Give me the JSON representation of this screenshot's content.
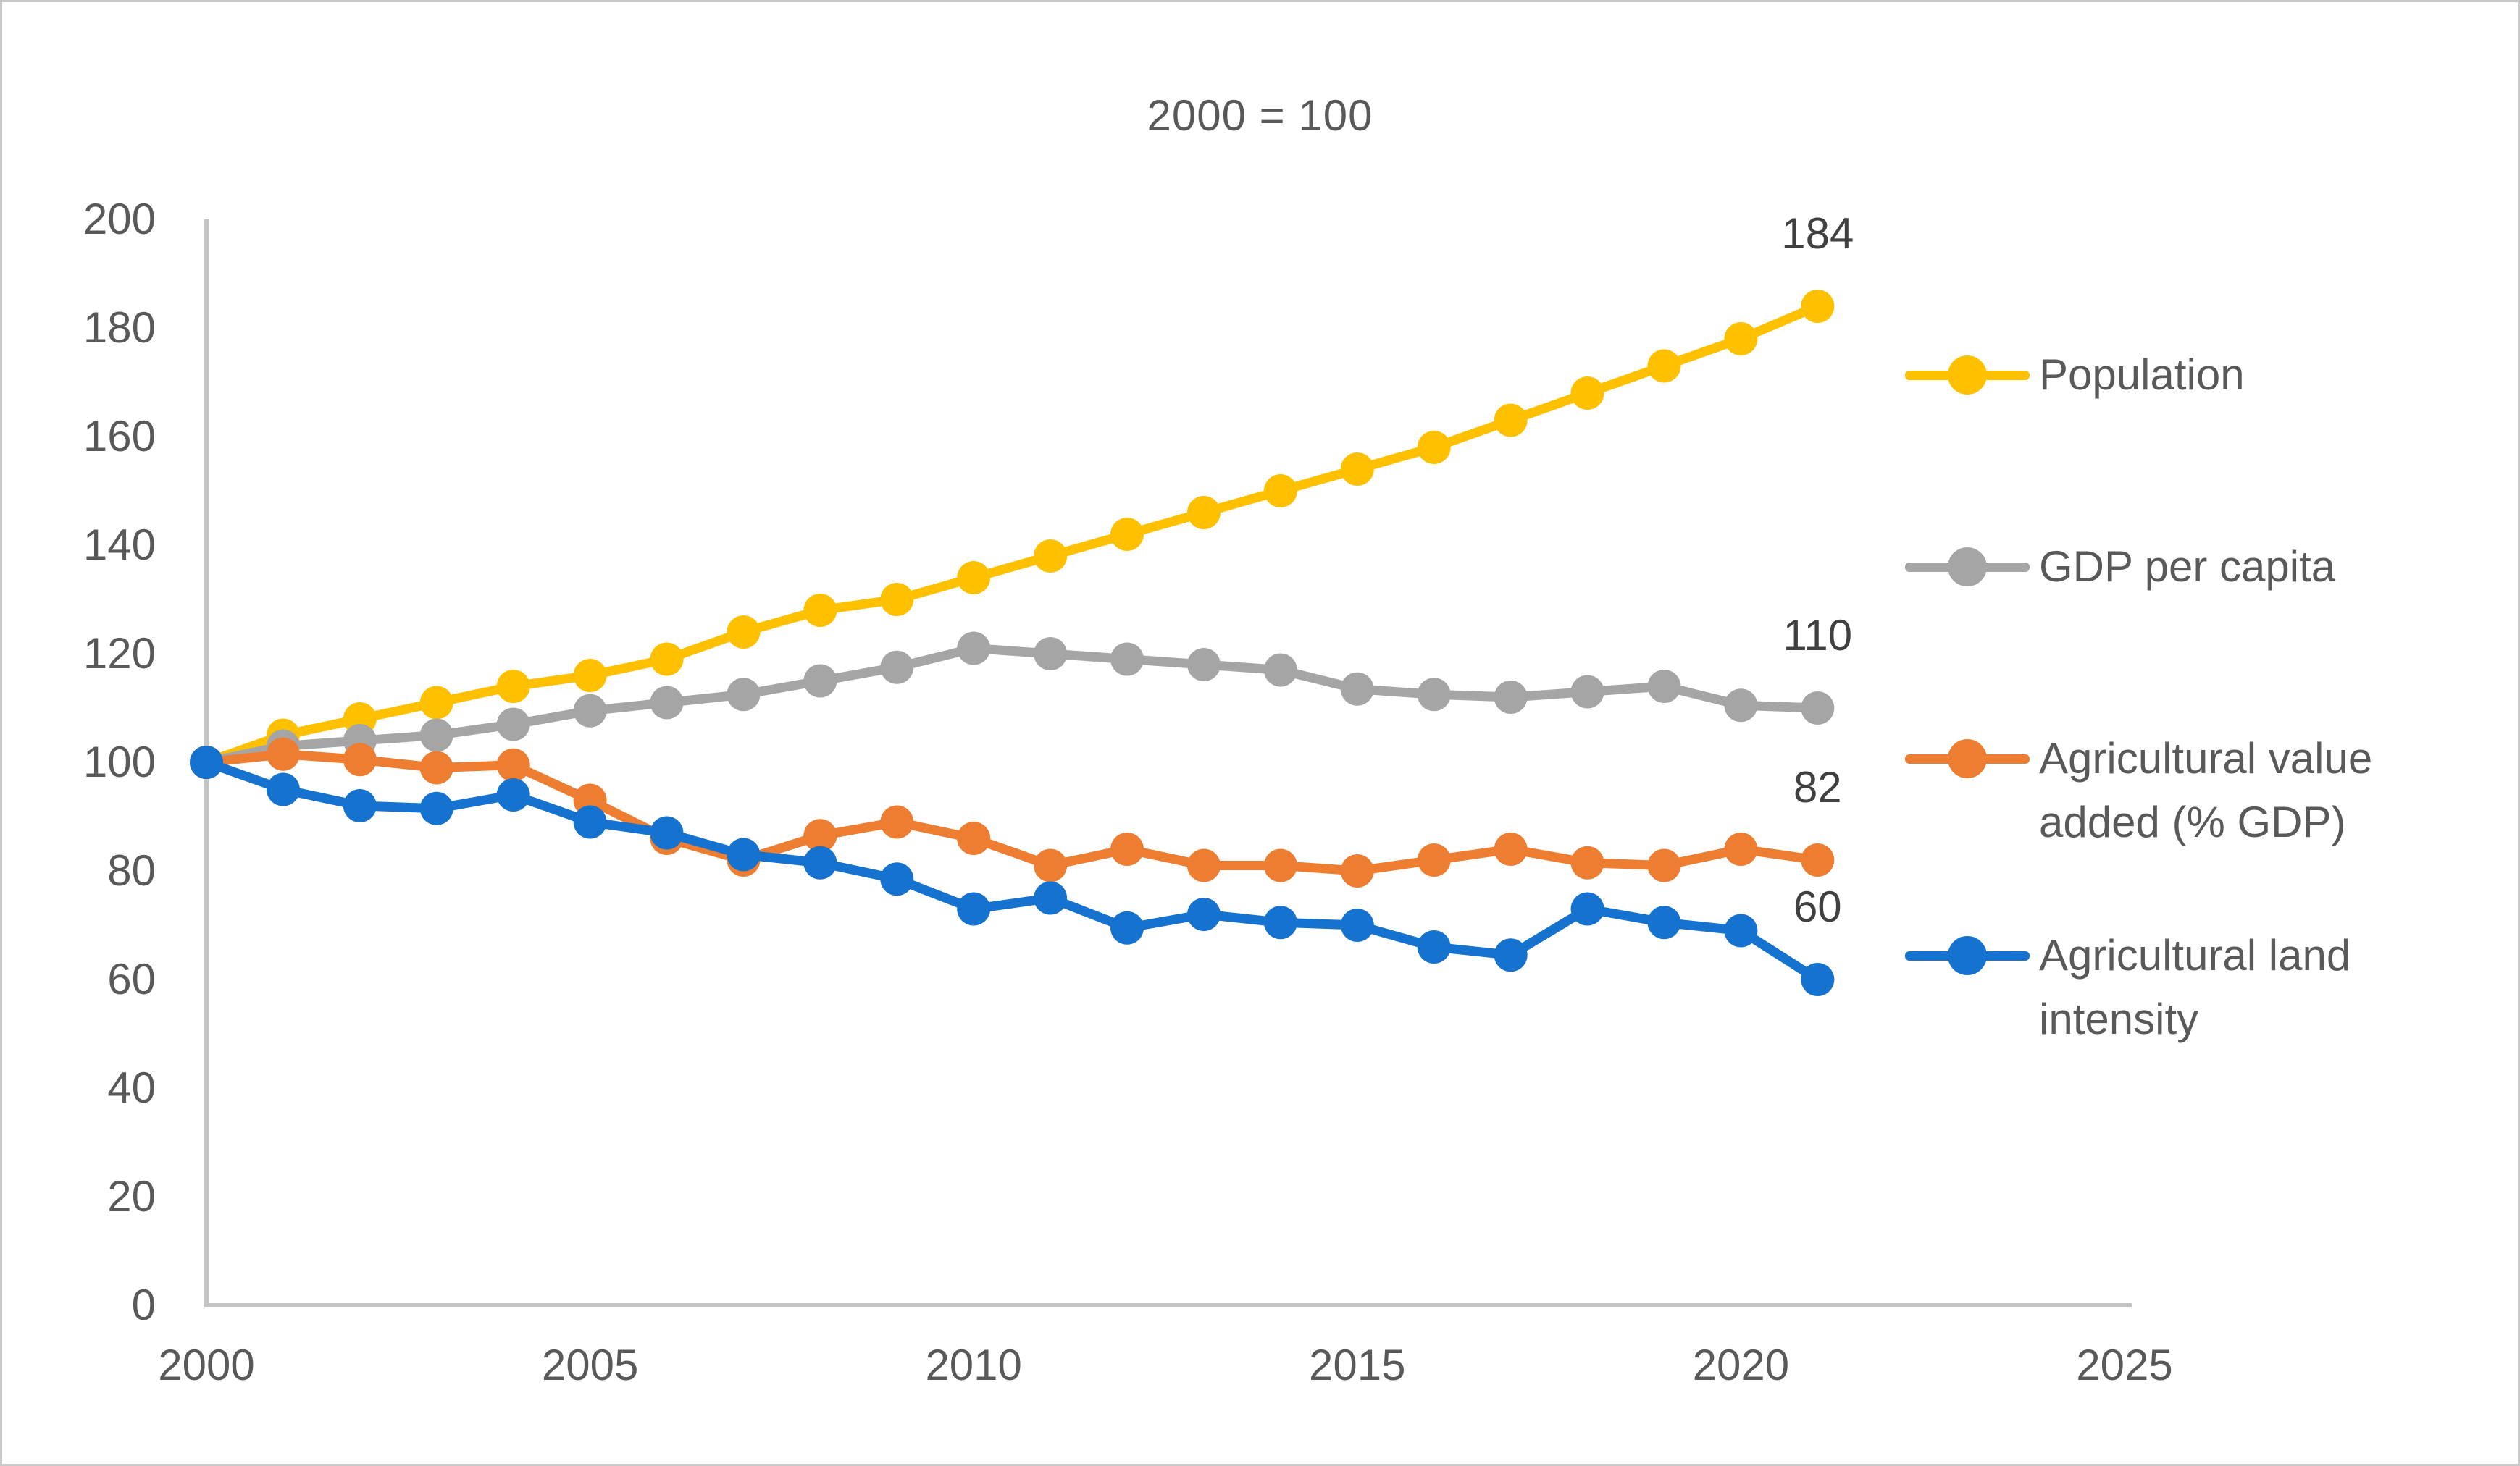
{
  "figure": {
    "title": "2000 = 100",
    "background": "#ffffff",
    "border_color": "#c9c9c9",
    "axis_color": "#c3c3c3",
    "tick_text_color": "#595959",
    "data_label_color": "#404040"
  },
  "chart_data": {
    "type": "line",
    "title": "2000 = 100",
    "xlabel": "",
    "ylabel": "",
    "xlim": [
      2000,
      2025
    ],
    "ylim": [
      0,
      200
    ],
    "grid": false,
    "legend_position": "right",
    "x": [
      2000,
      2001,
      2002,
      2003,
      2004,
      2005,
      2006,
      2007,
      2008,
      2009,
      2010,
      2011,
      2012,
      2013,
      2014,
      2015,
      2016,
      2017,
      2018,
      2019,
      2020,
      2021
    ],
    "x_ticks": [
      "2000",
      "2005",
      "2010",
      "2015",
      "2020",
      "2025"
    ],
    "y_ticks": [
      "0",
      "20",
      "40",
      "60",
      "80",
      "100",
      "120",
      "140",
      "160",
      "180",
      "200"
    ],
    "series": [
      {
        "name": "Population",
        "color": "#FFC000",
        "end_label": "184",
        "values": [
          100,
          105,
          108,
          111,
          114,
          116,
          119,
          124,
          128,
          130,
          134,
          138,
          142,
          146,
          150,
          154,
          158,
          163,
          168,
          173,
          178,
          184
        ]
      },
      {
        "name": "GDP per capita",
        "color": "#A5A5A5",
        "end_label": "110",
        "values": [
          100,
          103,
          104,
          105,
          107,
          109.5,
          111,
          112.5,
          115,
          117.5,
          121,
          120,
          119,
          118,
          117,
          113.5,
          112.5,
          112,
          113,
          114,
          110.5,
          110
        ]
      },
      {
        "name": "Agricultural value added (% GDP)",
        "color": "#ED7D31",
        "end_label": "82",
        "values": [
          100,
          101.5,
          100.5,
          99,
          99.5,
          93,
          86,
          82,
          86.5,
          89,
          86,
          81,
          84,
          81,
          81,
          80,
          82,
          84,
          81.5,
          81,
          84,
          82
        ]
      },
      {
        "name": "Agricultural land intensity",
        "color": "#1572CE",
        "end_label": "60",
        "values": [
          100,
          95,
          92,
          91.5,
          94,
          89,
          87,
          83,
          81.5,
          78.5,
          73,
          75,
          69.5,
          72,
          70.5,
          70,
          66,
          64.5,
          73,
          70.5,
          69,
          60
        ]
      }
    ]
  }
}
